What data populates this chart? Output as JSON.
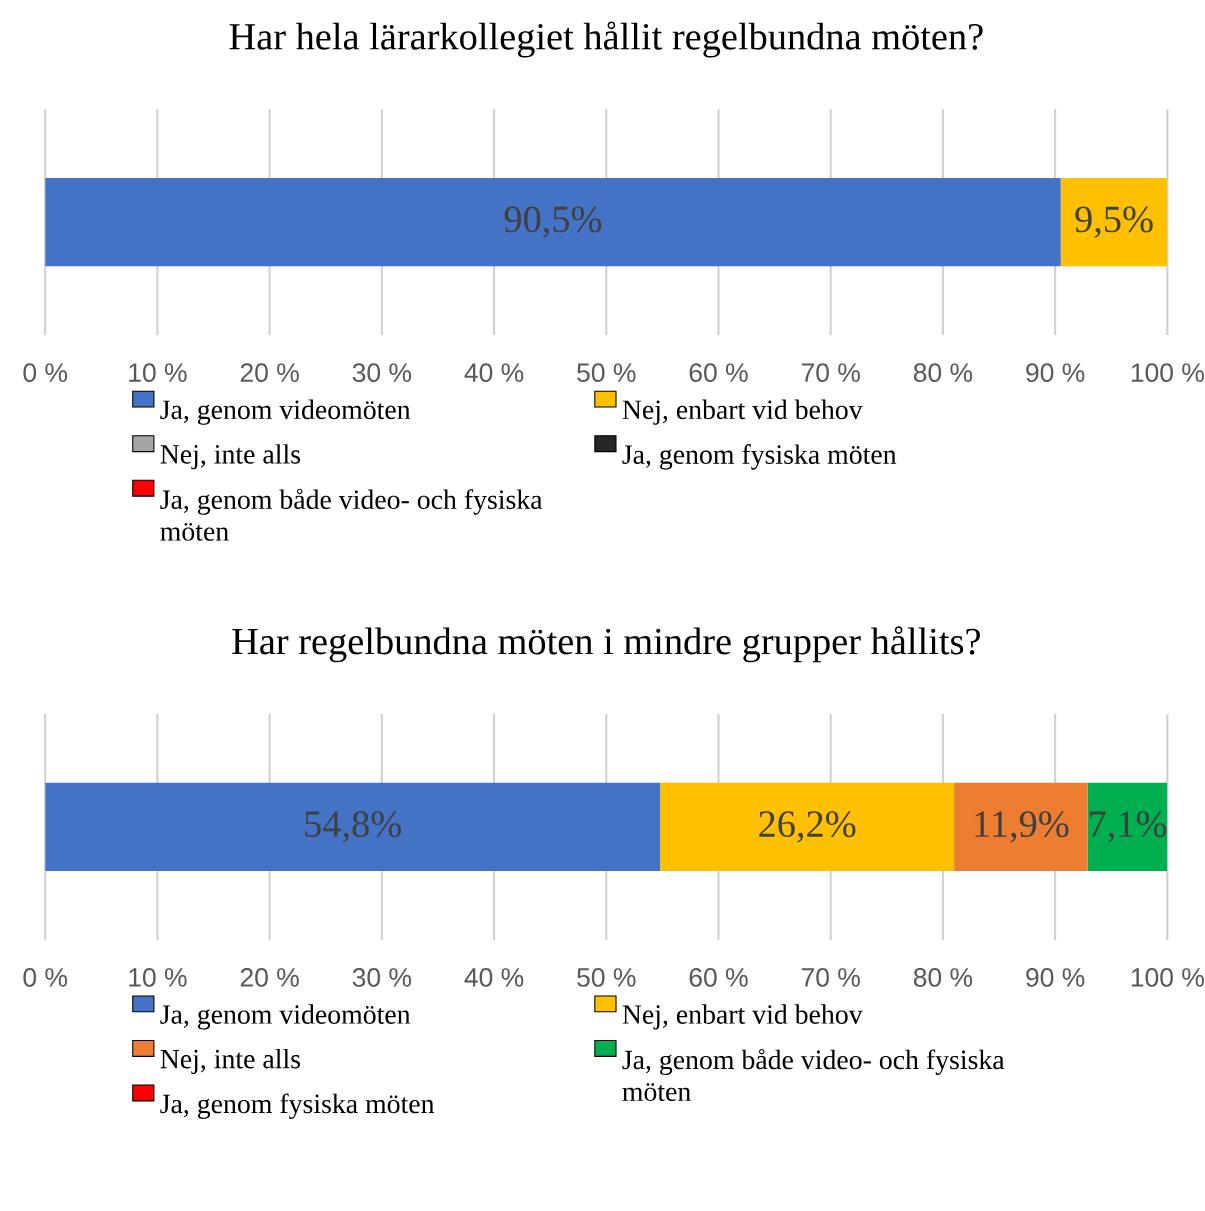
{
  "chart_data": [
    {
      "type": "bar",
      "orientation": "horizontal",
      "stacked": true,
      "title": "Har hela lärarkollegiet hållit regelbundna möten?",
      "categories": [
        null
      ],
      "xlim": [
        0,
        100
      ],
      "xticks": [
        {
          "value": 0,
          "label": "0 %"
        },
        {
          "value": 10,
          "label": "10 %"
        },
        {
          "value": 20,
          "label": "20 %"
        },
        {
          "value": 30,
          "label": "30 %"
        },
        {
          "value": 40,
          "label": "40 %"
        },
        {
          "value": 50,
          "label": "50 %"
        },
        {
          "value": 60,
          "label": "60 %"
        },
        {
          "value": 70,
          "label": "70 %"
        },
        {
          "value": 80,
          "label": "80 %"
        },
        {
          "value": 90,
          "label": "90 %"
        },
        {
          "value": 100,
          "label": "100 %"
        }
      ],
      "grid": "x",
      "legend": "bottom",
      "tick_labels": "x",
      "series": [
        {
          "name": "Ja, genom videomöten",
          "color": "#4472c4",
          "values": [
            90.5
          ],
          "value_labels": [
            "90,5%"
          ]
        },
        {
          "name": "Nej, enbart vid behov",
          "color": "#ffc000",
          "values": [
            9.5
          ],
          "value_labels": [
            "9,5%"
          ]
        },
        {
          "name": "Nej, inte alls",
          "color": "#a5a5a5",
          "values": [
            0
          ],
          "value_labels": [
            null
          ]
        },
        {
          "name": "Ja, genom fysiska möten",
          "color": "#262626",
          "values": [
            0
          ],
          "value_labels": [
            null
          ]
        },
        {
          "name": "Ja, genom både video- och fysiska möten",
          "color": "#ff0000",
          "values": [
            0
          ],
          "value_labels": [
            null
          ]
        }
      ]
    },
    {
      "type": "bar",
      "orientation": "horizontal",
      "stacked": true,
      "title": "Har regelbundna möten i mindre grupper hållits?",
      "categories": [
        null
      ],
      "xlim": [
        0,
        100
      ],
      "xticks": [
        {
          "value": 0,
          "label": "0 %"
        },
        {
          "value": 10,
          "label": "10 %"
        },
        {
          "value": 20,
          "label": "20 %"
        },
        {
          "value": 30,
          "label": "30 %"
        },
        {
          "value": 40,
          "label": "40 %"
        },
        {
          "value": 50,
          "label": "50 %"
        },
        {
          "value": 60,
          "label": "60 %"
        },
        {
          "value": 70,
          "label": "70 %"
        },
        {
          "value": 80,
          "label": "80 %"
        },
        {
          "value": 90,
          "label": "90 %"
        },
        {
          "value": 100,
          "label": "100 %"
        }
      ],
      "grid": "x",
      "legend": "bottom",
      "tick_labels": "x",
      "series": [
        {
          "name": "Ja, genom videomöten",
          "color": "#4472c4",
          "values": [
            54.8
          ],
          "value_labels": [
            "54,8%"
          ]
        },
        {
          "name": "Nej, enbart vid behov",
          "color": "#ffc000",
          "values": [
            26.2
          ],
          "value_labels": [
            "26,2%"
          ]
        },
        {
          "name": "Nej, inte alls",
          "color": "#ed7d31",
          "values": [
            11.9
          ],
          "value_labels": [
            "11,9%"
          ]
        },
        {
          "name": "Ja, genom både video- och fysiska möten",
          "color": "#00b050",
          "values": [
            7.1
          ],
          "value_labels": [
            "7,1%"
          ]
        },
        {
          "name": "Ja, genom fysiska möten",
          "color": "#ff0000",
          "values": [
            0
          ],
          "value_labels": [
            null
          ]
        }
      ]
    }
  ]
}
